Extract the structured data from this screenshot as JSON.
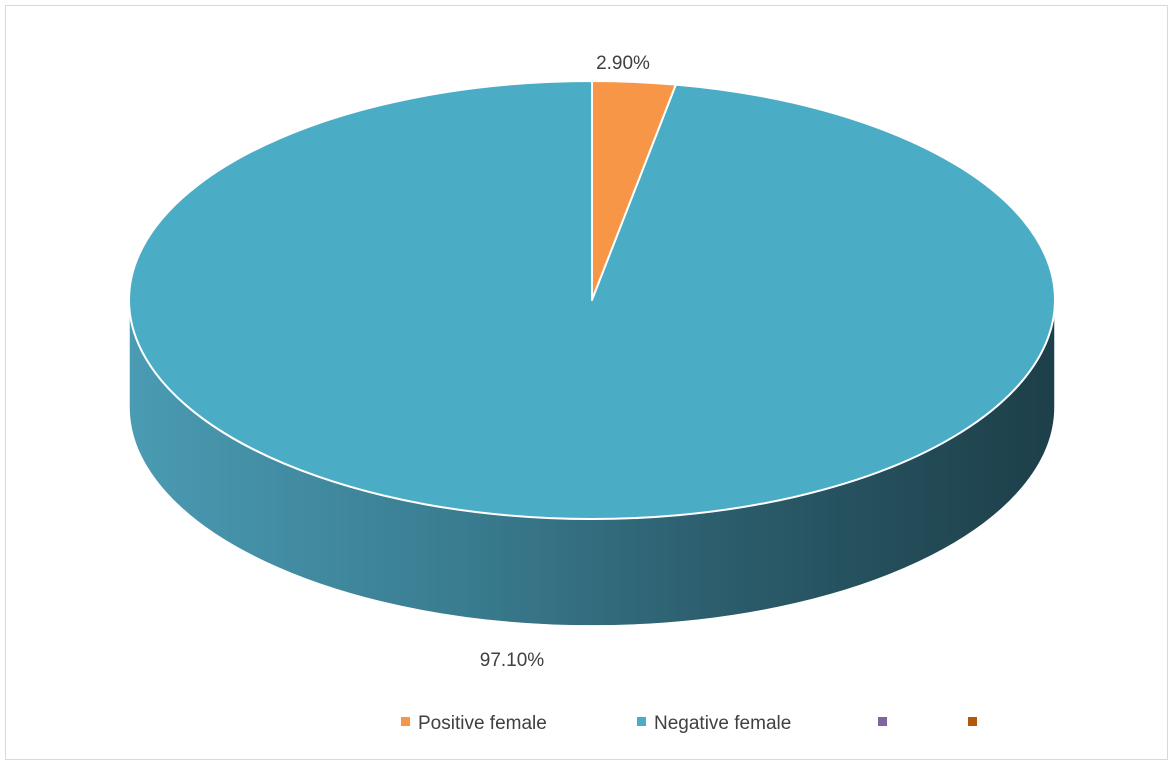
{
  "chart_data": {
    "type": "pie",
    "style": "3d",
    "title": "",
    "slices": [
      {
        "label": "Positive female",
        "value": 2.9,
        "display": "2.90%",
        "color": "#F79646"
      },
      {
        "label": "Negative female",
        "value": 97.1,
        "display": "97.10%",
        "color": "#4BACC6"
      }
    ],
    "legend": {
      "position": "bottom",
      "entries": [
        {
          "label": "Positive female",
          "color": "#F79646"
        },
        {
          "label": "Negative female",
          "color": "#4BACC6"
        },
        {
          "label": "",
          "color": "#8064A2"
        },
        {
          "label": "",
          "color": "#B65708"
        }
      ]
    }
  }
}
